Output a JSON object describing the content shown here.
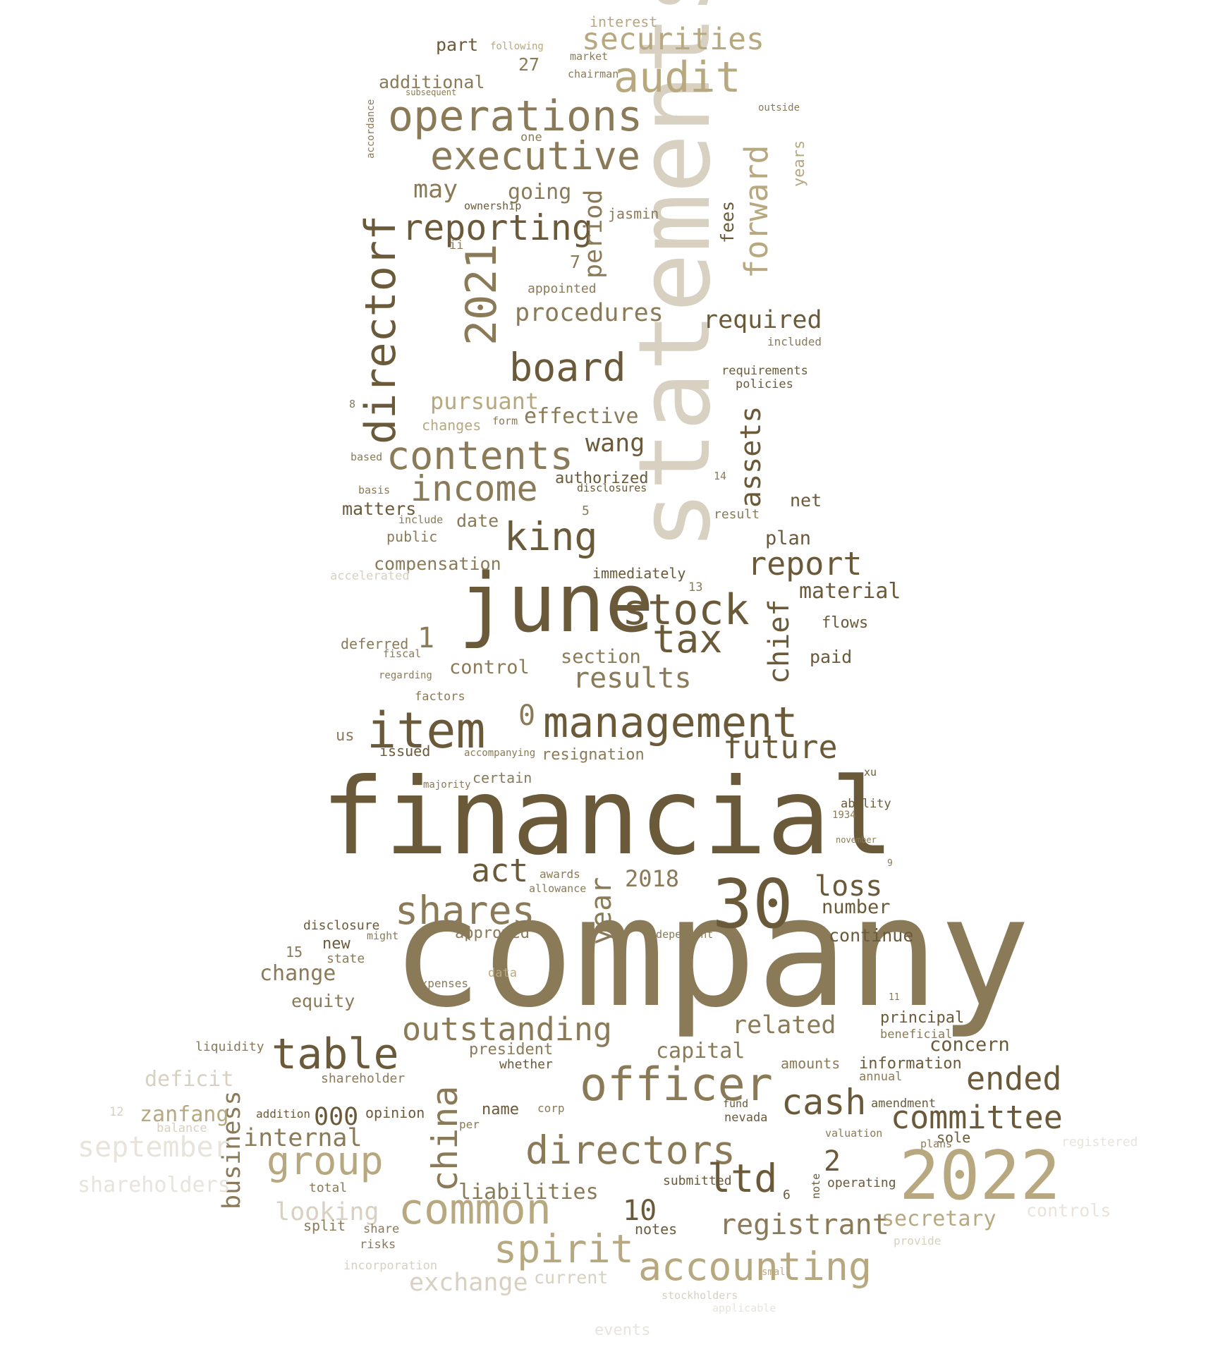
{
  "palette": {
    "dark": "#6b5a3a",
    "mid": "#8a7a58",
    "light": "#b8a880",
    "pale": "#d8d0c0",
    "faint": "#e8e4dc"
  },
  "words": [
    {
      "text": "company",
      "tone": "mid"
    },
    {
      "text": "financial",
      "tone": "dark"
    },
    {
      "text": "statements",
      "tone": "pale"
    },
    {
      "text": "june",
      "tone": "dark"
    },
    {
      "text": "2022",
      "tone": "light"
    },
    {
      "text": "30",
      "tone": "dark"
    },
    {
      "text": "item",
      "tone": "dark"
    },
    {
      "text": "management",
      "tone": "dark"
    },
    {
      "text": "operations",
      "tone": "mid"
    },
    {
      "text": "audit",
      "tone": "light"
    },
    {
      "text": "securities",
      "tone": "light"
    },
    {
      "text": "executive",
      "tone": "mid"
    },
    {
      "text": "reporting",
      "tone": "dark"
    },
    {
      "text": "directorf",
      "tone": "dark"
    },
    {
      "text": "2021",
      "tone": "mid"
    },
    {
      "text": "board",
      "tone": "dark"
    },
    {
      "text": "contents",
      "tone": "mid"
    },
    {
      "text": "income",
      "tone": "mid"
    },
    {
      "text": "king",
      "tone": "dark"
    },
    {
      "text": "stock",
      "tone": "dark"
    },
    {
      "text": "tax",
      "tone": "dark"
    },
    {
      "text": "chief",
      "tone": "dark"
    },
    {
      "text": "assets",
      "tone": "dark"
    },
    {
      "text": "forward",
      "tone": "light"
    },
    {
      "text": "period",
      "tone": "mid"
    },
    {
      "text": "report",
      "tone": "dark"
    },
    {
      "text": "results",
      "tone": "mid"
    },
    {
      "text": "future",
      "tone": "dark"
    },
    {
      "text": "shares",
      "tone": "mid"
    },
    {
      "text": "act",
      "tone": "dark"
    },
    {
      "text": "table",
      "tone": "dark"
    },
    {
      "text": "outstanding",
      "tone": "mid"
    },
    {
      "text": "officer",
      "tone": "mid"
    },
    {
      "text": "cash",
      "tone": "dark"
    },
    {
      "text": "directors",
      "tone": "mid"
    },
    {
      "text": "group",
      "tone": "light"
    },
    {
      "text": "china",
      "tone": "mid"
    },
    {
      "text": "common",
      "tone": "light"
    },
    {
      "text": "spirit",
      "tone": "light"
    },
    {
      "text": "accounting",
      "tone": "light"
    },
    {
      "text": "exchange",
      "tone": "pale"
    },
    {
      "text": "ltd",
      "tone": "dark"
    },
    {
      "text": "registrant",
      "tone": "mid"
    },
    {
      "text": "committee",
      "tone": "dark"
    },
    {
      "text": "ended",
      "tone": "dark"
    },
    {
      "text": "loss",
      "tone": "dark"
    },
    {
      "text": "year",
      "tone": "mid"
    },
    {
      "text": "related",
      "tone": "mid"
    },
    {
      "text": "capital",
      "tone": "mid"
    },
    {
      "text": "internal",
      "tone": "mid"
    },
    {
      "text": "business",
      "tone": "mid"
    },
    {
      "text": "liabilities",
      "tone": "mid"
    },
    {
      "text": "looking",
      "tone": "pale"
    },
    {
      "text": "000",
      "tone": "dark"
    },
    {
      "text": "september",
      "tone": "faint"
    },
    {
      "text": "shareholders",
      "tone": "faint"
    },
    {
      "text": "deficit",
      "tone": "pale"
    },
    {
      "text": "zanfang",
      "tone": "light"
    },
    {
      "text": "secretary",
      "tone": "light"
    },
    {
      "text": "controls",
      "tone": "faint"
    },
    {
      "text": "required",
      "tone": "dark"
    },
    {
      "text": "procedures",
      "tone": "mid"
    },
    {
      "text": "pursuant",
      "tone": "light"
    },
    {
      "text": "effective",
      "tone": "mid"
    },
    {
      "text": "wang",
      "tone": "dark"
    },
    {
      "text": "may",
      "tone": "mid"
    },
    {
      "text": "going",
      "tone": "mid"
    },
    {
      "text": "additional",
      "tone": "mid"
    },
    {
      "text": "part",
      "tone": "dark"
    },
    {
      "text": "interest",
      "tone": "light"
    },
    {
      "text": "27",
      "tone": "mid"
    },
    {
      "text": "fees",
      "tone": "dark"
    },
    {
      "text": "years",
      "tone": "light"
    },
    {
      "text": "jasmin",
      "tone": "mid"
    },
    {
      "text": "authorized",
      "tone": "dark"
    },
    {
      "text": "compensation",
      "tone": "mid"
    },
    {
      "text": "matters",
      "tone": "dark"
    },
    {
      "text": "date",
      "tone": "mid"
    },
    {
      "text": "plan",
      "tone": "dark"
    },
    {
      "text": "net",
      "tone": "dark"
    },
    {
      "text": "material",
      "tone": "dark"
    },
    {
      "text": "flows",
      "tone": "dark"
    },
    {
      "text": "paid",
      "tone": "dark"
    },
    {
      "text": "section",
      "tone": "mid"
    },
    {
      "text": "control",
      "tone": "mid"
    },
    {
      "text": "immediately",
      "tone": "dark"
    },
    {
      "text": "deferred",
      "tone": "mid"
    },
    {
      "text": "1",
      "tone": "mid"
    },
    {
      "text": "0",
      "tone": "mid"
    },
    {
      "text": "us",
      "tone": "mid"
    },
    {
      "text": "issued",
      "tone": "dark"
    },
    {
      "text": "resignation",
      "tone": "mid"
    },
    {
      "text": "certain",
      "tone": "mid"
    },
    {
      "text": "2018",
      "tone": "mid"
    },
    {
      "text": "number",
      "tone": "dark"
    },
    {
      "text": "continue",
      "tone": "dark"
    },
    {
      "text": "disclosure",
      "tone": "dark"
    },
    {
      "text": "new",
      "tone": "dark"
    },
    {
      "text": "change",
      "tone": "mid"
    },
    {
      "text": "state",
      "tone": "mid"
    },
    {
      "text": "equity",
      "tone": "mid"
    },
    {
      "text": "approved",
      "tone": "mid"
    },
    {
      "text": "president",
      "tone": "mid"
    },
    {
      "text": "whether",
      "tone": "dark"
    },
    {
      "text": "liquidity",
      "tone": "mid"
    },
    {
      "text": "shareholder",
      "tone": "mid"
    },
    {
      "text": "opinion",
      "tone": "dark"
    },
    {
      "text": "name",
      "tone": "dark"
    },
    {
      "text": "amounts",
      "tone": "mid"
    },
    {
      "text": "information",
      "tone": "dark"
    },
    {
      "text": "concern",
      "tone": "dark"
    },
    {
      "text": "principal",
      "tone": "dark"
    },
    {
      "text": "beneficial",
      "tone": "mid"
    },
    {
      "text": "annual",
      "tone": "mid"
    },
    {
      "text": "amendment",
      "tone": "dark"
    },
    {
      "text": "sole",
      "tone": "dark"
    },
    {
      "text": "registered",
      "tone": "faint"
    },
    {
      "text": "2",
      "tone": "dark"
    },
    {
      "text": "6",
      "tone": "dark"
    },
    {
      "text": "10",
      "tone": "dark"
    },
    {
      "text": "notes",
      "tone": "dark"
    },
    {
      "text": "submitted",
      "tone": "dark"
    },
    {
      "text": "operating",
      "tone": "dark"
    },
    {
      "text": "current",
      "tone": "pale"
    },
    {
      "text": "split",
      "tone": "mid"
    },
    {
      "text": "total",
      "tone": "mid"
    },
    {
      "text": "risks",
      "tone": "mid"
    },
    {
      "text": "share",
      "tone": "mid"
    },
    {
      "text": "incorporation",
      "tone": "pale"
    },
    {
      "text": "balance",
      "tone": "pale"
    },
    {
      "text": "provide",
      "tone": "pale"
    },
    {
      "text": "events",
      "tone": "faint"
    },
    {
      "text": "applicable",
      "tone": "faint"
    },
    {
      "text": "stockholders",
      "tone": "pale"
    },
    {
      "text": "accelerated",
      "tone": "pale"
    },
    {
      "text": "public",
      "tone": "mid"
    },
    {
      "text": "changes",
      "tone": "light"
    },
    {
      "text": "appointed",
      "tone": "mid"
    },
    {
      "text": "disclosures",
      "tone": "dark"
    },
    {
      "text": "result",
      "tone": "mid"
    },
    {
      "text": "requirements",
      "tone": "dark"
    },
    {
      "text": "policies",
      "tone": "dark"
    },
    {
      "text": "included",
      "tone": "mid"
    },
    {
      "text": "ii",
      "tone": "mid"
    },
    {
      "text": "ownership",
      "tone": "dark"
    },
    {
      "text": "7",
      "tone": "mid"
    },
    {
      "text": "5",
      "tone": "mid"
    },
    {
      "text": "8",
      "tone": "mid"
    },
    {
      "text": "13",
      "tone": "mid"
    },
    {
      "text": "14",
      "tone": "mid"
    },
    {
      "text": "15",
      "tone": "mid"
    },
    {
      "text": "9",
      "tone": "mid"
    },
    {
      "text": "11",
      "tone": "mid"
    },
    {
      "text": "12",
      "tone": "pale"
    },
    {
      "text": "addition",
      "tone": "dark"
    },
    {
      "text": "corp",
      "tone": "mid"
    },
    {
      "text": "per",
      "tone": "mid"
    },
    {
      "text": "fund",
      "tone": "dark"
    },
    {
      "text": "nevada",
      "tone": "dark"
    },
    {
      "text": "valuation",
      "tone": "mid"
    },
    {
      "text": "plans",
      "tone": "mid"
    },
    {
      "text": "note",
      "tone": "dark"
    },
    {
      "text": "ability",
      "tone": "dark"
    },
    {
      "text": "xu",
      "tone": "dark"
    },
    {
      "text": "independent",
      "tone": "mid"
    },
    {
      "text": "awards",
      "tone": "mid"
    },
    {
      "text": "allowance",
      "tone": "mid"
    },
    {
      "text": "expenses",
      "tone": "mid"
    },
    {
      "text": "data",
      "tone": "light"
    },
    {
      "text": "might",
      "tone": "mid"
    },
    {
      "text": "factors",
      "tone": "mid"
    },
    {
      "text": "regarding",
      "tone": "mid"
    },
    {
      "text": "majority",
      "tone": "mid"
    },
    {
      "text": "accompanying",
      "tone": "mid"
    },
    {
      "text": "fiscal",
      "tone": "mid"
    },
    {
      "text": "based",
      "tone": "mid"
    },
    {
      "text": "basis",
      "tone": "mid"
    },
    {
      "text": "include",
      "tone": "mid"
    },
    {
      "text": "form",
      "tone": "mid"
    },
    {
      "text": "chairman",
      "tone": "mid"
    },
    {
      "text": "market",
      "tone": "mid"
    },
    {
      "text": "following",
      "tone": "light"
    },
    {
      "text": "subsequent",
      "tone": "mid"
    },
    {
      "text": "outside",
      "tone": "mid"
    },
    {
      "text": "accordance",
      "tone": "mid"
    },
    {
      "text": "one",
      "tone": "mid"
    },
    {
      "text": "november",
      "tone": "mid"
    },
    {
      "text": "1934",
      "tone": "mid"
    },
    {
      "text": "small",
      "tone": "light"
    }
  ]
}
